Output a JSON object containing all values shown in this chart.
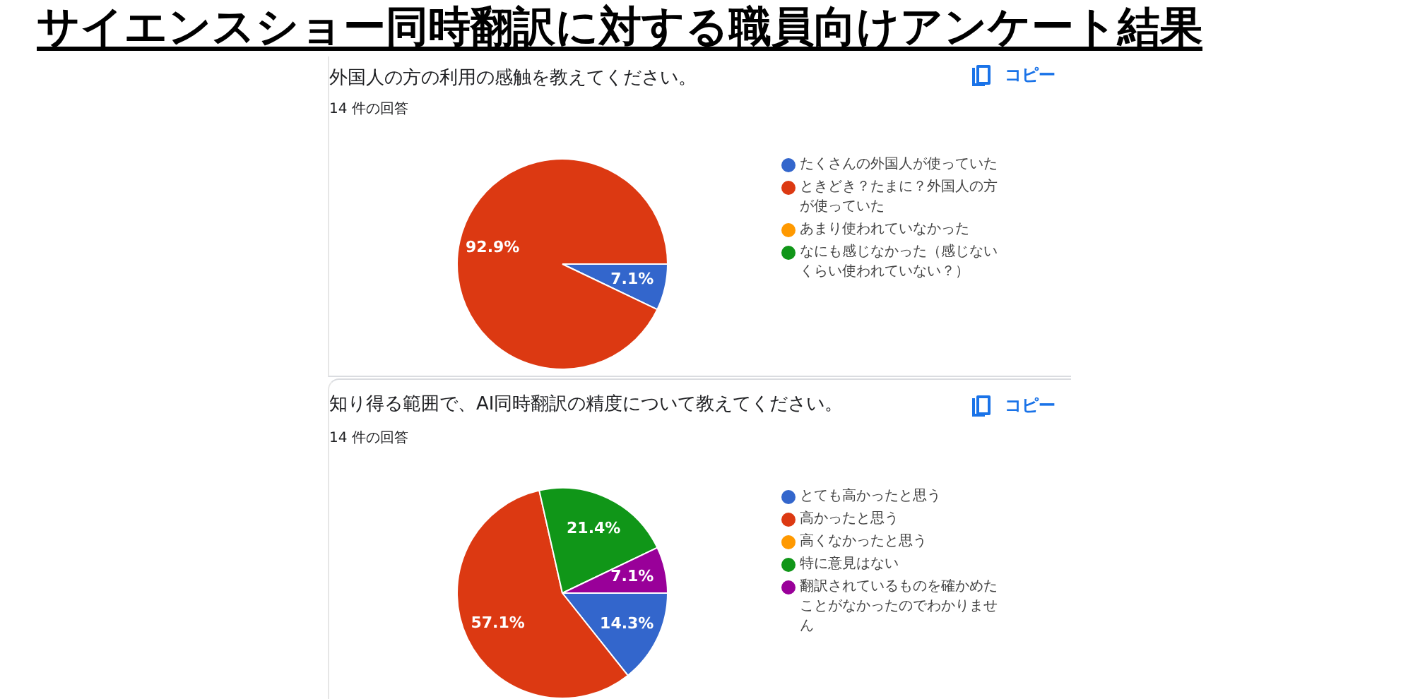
{
  "chart_data": [
    {
      "type": "other",
      "title": "サイエンスショー同時翻訳に対する職員向けアンケート結果"
    },
    {
      "type": "pie",
      "title": "外国人の方の利用の感触を教えてください。",
      "subtitle": "14 件の回答",
      "annotations": [
        "コピー"
      ],
      "categories": [
        "たくさんの外国人が使っていた",
        "ときどき？たまに？外国人の方が使っていた",
        "あまり使われていなかった",
        "なにも感じなかった（感じないくらい使われていない？）"
      ],
      "values": [
        7.1,
        92.9,
        0,
        0
      ],
      "colors": [
        "#3366cc",
        "#dc3912",
        "#ff9900",
        "#109618"
      ],
      "value_labels": [
        "7.1%",
        "92.9%",
        null,
        null
      ],
      "legend": "right"
    },
    {
      "type": "pie",
      "title": "知り得る範囲で、AI同時翻訳の精度について教えてください。",
      "subtitle": "14 件の回答",
      "annotations": [
        "コピー"
      ],
      "categories": [
        "とても高かったと思う",
        "高かったと思う",
        "高くなかったと思う",
        "特に意見はない",
        "翻訳されているものを確かめたことがなかったのでわかりません"
      ],
      "values": [
        14.3,
        57.1,
        0,
        21.4,
        7.1
      ],
      "colors": [
        "#3366cc",
        "#dc3912",
        "#ff9900",
        "#109618",
        "#990099"
      ],
      "value_labels": [
        "14.3%",
        "57.1%",
        null,
        "21.4%",
        "7.1%"
      ],
      "legend": "right"
    }
  ]
}
